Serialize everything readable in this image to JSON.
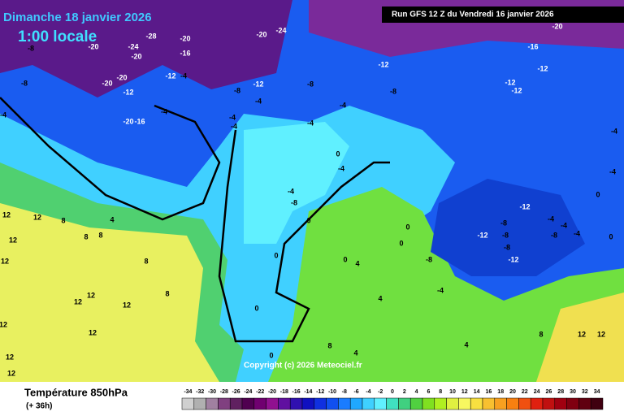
{
  "header": {
    "title": "Dimanche 18 janvier 2026",
    "subtitle": "1:00 locale",
    "run": "Run GFS 12 Z du Vendredi 16 janvier 2026"
  },
  "map": {
    "labels": [
      -8,
      -20,
      -20,
      -20,
      -28,
      -24,
      -16,
      -20,
      -24,
      -12,
      -4,
      -20,
      -20,
      -12,
      -8,
      -8,
      -12,
      -8,
      -12,
      -16,
      -20,
      -12,
      -12,
      -12,
      -8,
      -4,
      -4,
      -4,
      -4,
      -4,
      -4,
      -4,
      -20,
      -16,
      0,
      -4,
      -4,
      -8,
      0,
      4,
      12,
      12,
      8,
      8,
      8,
      12,
      12,
      8,
      12,
      12,
      12,
      8,
      12,
      12,
      12,
      12,
      0,
      0,
      0,
      4,
      0,
      0,
      -8,
      -12,
      -12,
      -8,
      -8,
      -8,
      -12,
      -4,
      -4,
      -8,
      -4,
      0,
      0,
      -4,
      -4,
      8,
      12,
      12,
      4,
      4,
      8,
      4,
      -4,
      0
    ]
  },
  "copyright": "Copyright (c) 2026 Meteociel.fr",
  "footer": {
    "title": "Température 850hPa",
    "lead": "(+ 36h)"
  },
  "legend": {
    "values": [
      -34,
      -32,
      -30,
      -28,
      -26,
      -24,
      -22,
      -20,
      -18,
      -16,
      -14,
      -12,
      -10,
      -8,
      -6,
      -4,
      -2,
      0,
      2,
      4,
      6,
      8,
      10,
      12,
      14,
      16,
      18,
      20,
      22,
      24,
      26,
      28,
      30,
      32,
      34
    ],
    "colors": [
      "#d0d0d0",
      "#b0b0b0",
      "#a080a0",
      "#804080",
      "#602060",
      "#500050",
      "#700070",
      "#901090",
      "#6010a0",
      "#3010b0",
      "#1010c0",
      "#1030e0",
      "#1050f0",
      "#1a7cff",
      "#20a8ff",
      "#3fd0ff",
      "#60f0ff",
      "#40e0c0",
      "#40d080",
      "#50d040",
      "#80e020",
      "#b0f020",
      "#e0f040",
      "#f8f860",
      "#f8e040",
      "#f8c030",
      "#f8a020",
      "#f88010",
      "#f05010",
      "#e02010",
      "#c01010",
      "#a00010",
      "#800010",
      "#600010",
      "#400010"
    ]
  }
}
